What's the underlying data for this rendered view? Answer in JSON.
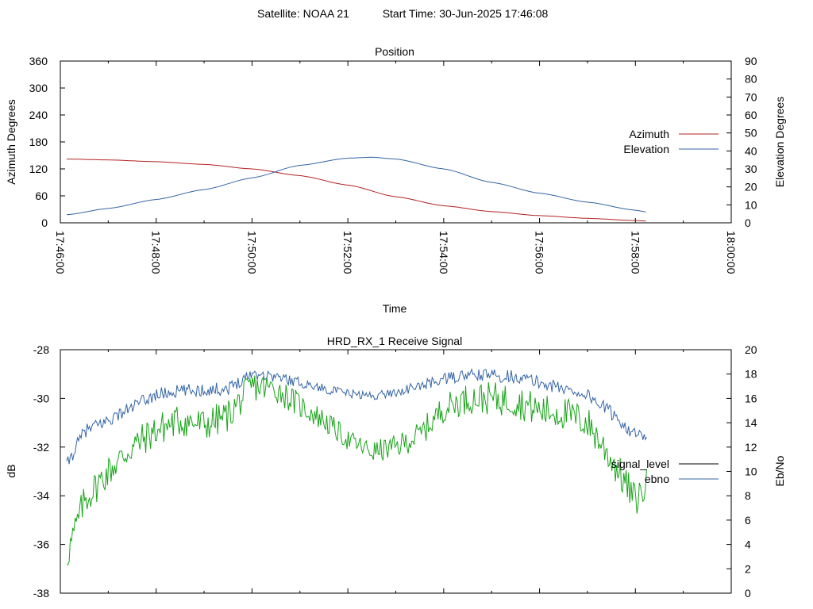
{
  "header": {
    "satellite": "Satellite: NOAA 21",
    "start_time": "Start Time: 30-Jun-2025 17:46:08"
  },
  "colors": {
    "azimuth": "#b22222",
    "elevation": "#3465a4",
    "signal_level": "#000000",
    "ebno": "#3465a4",
    "signal_drawn": "#1aa31a"
  },
  "chart_data": [
    {
      "type": "line",
      "title": "Position",
      "xlabel": "Time",
      "ylabel": "Azimuth Degrees",
      "y2label": "Elevation Degrees",
      "xlim": [
        "17:46:00",
        "18:00:00"
      ],
      "ylim": [
        0,
        360
      ],
      "y2lim": [
        0,
        90
      ],
      "x_ticks": [
        "17:46:00",
        "17:48:00",
        "17:50:00",
        "17:52:00",
        "17:54:00",
        "17:56:00",
        "17:58:00",
        "18:00:00"
      ],
      "y_ticks": [
        "0",
        "60",
        "120",
        "180",
        "240",
        "300",
        "360"
      ],
      "y2_ticks": [
        "0",
        "10",
        "20",
        "30",
        "40",
        "50",
        "60",
        "70",
        "80",
        "90"
      ],
      "legend_position": "right",
      "grid": false,
      "series": [
        {
          "name": "Azimuth",
          "axis": "left",
          "x": [
            "17:46:08",
            "17:47:00",
            "17:48:00",
            "17:49:00",
            "17:50:00",
            "17:51:00",
            "17:52:00",
            "17:53:00",
            "17:54:00",
            "17:55:00",
            "17:56:00",
            "17:57:00",
            "17:58:00",
            "17:58:15"
          ],
          "values": [
            142,
            140,
            136,
            130,
            120,
            105,
            84,
            58,
            38,
            25,
            16,
            10,
            5,
            4
          ]
        },
        {
          "name": "Elevation",
          "axis": "right",
          "x": [
            "17:46:08",
            "17:47:00",
            "17:48:00",
            "17:49:00",
            "17:50:00",
            "17:51:00",
            "17:52:00",
            "17:52:30",
            "17:53:00",
            "17:54:00",
            "17:55:00",
            "17:56:00",
            "17:57:00",
            "17:58:00",
            "17:58:15"
          ],
          "values": [
            4.5,
            8,
            13,
            18.5,
            25,
            32,
            36,
            36.5,
            35.5,
            30,
            22.5,
            16.5,
            11.5,
            7,
            6
          ]
        }
      ]
    },
    {
      "type": "line",
      "title": "HRD_RX_1 Receive Signal",
      "ylabel": "dB",
      "y2label": "Eb/No",
      "xlim": [
        "17:46:00",
        "18:00:00"
      ],
      "ylim": [
        -38,
        -28
      ],
      "y2lim": [
        0,
        20
      ],
      "y_ticks": [
        "-38",
        "-36",
        "-34",
        "-32",
        "-30",
        "-28"
      ],
      "y2_ticks": [
        "0",
        "2",
        "4",
        "6",
        "8",
        "10",
        "12",
        "14",
        "16",
        "18",
        "20"
      ],
      "legend_position": "right",
      "grid": false,
      "series": [
        {
          "name": "signal_level",
          "axis": "left",
          "x": [
            "17:46:08",
            "17:46:30",
            "17:47:00",
            "17:47:30",
            "17:48:00",
            "17:48:30",
            "17:49:00",
            "17:49:30",
            "17:50:00",
            "17:50:30",
            "17:51:00",
            "17:51:30",
            "17:52:00",
            "17:52:30",
            "17:53:00",
            "17:53:30",
            "17:54:00",
            "17:54:30",
            "17:55:00",
            "17:55:30",
            "17:56:00",
            "17:56:30",
            "17:57:00",
            "17:57:30",
            "17:58:00",
            "17:58:15"
          ],
          "values": [
            -36.5,
            -34.2,
            -33.0,
            -32.0,
            -31.3,
            -30.9,
            -31.1,
            -30.7,
            -29.5,
            -29.6,
            -30.3,
            -30.9,
            -31.7,
            -32.2,
            -32.0,
            -31.5,
            -30.4,
            -30.0,
            -30.0,
            -30.1,
            -30.5,
            -30.6,
            -31.0,
            -32.5,
            -34.2,
            -33.5
          ]
        },
        {
          "name": "ebno",
          "axis": "right",
          "x": [
            "17:46:08",
            "17:46:30",
            "17:47:00",
            "17:47:30",
            "17:48:00",
            "17:48:30",
            "17:49:00",
            "17:49:30",
            "17:50:00",
            "17:50:30",
            "17:51:00",
            "17:51:30",
            "17:52:00",
            "17:52:30",
            "17:53:00",
            "17:53:30",
            "17:54:00",
            "17:54:30",
            "17:55:00",
            "17:55:30",
            "17:56:00",
            "17:56:30",
            "17:57:00",
            "17:57:30",
            "17:58:00",
            "17:58:15"
          ],
          "values": [
            10.5,
            13.3,
            14.2,
            15.3,
            16.3,
            16.6,
            16.7,
            16.8,
            18.1,
            17.8,
            17.3,
            16.8,
            16.4,
            16.2,
            16.5,
            17.0,
            17.6,
            17.9,
            17.9,
            17.8,
            17.3,
            16.8,
            16.3,
            14.8,
            13.0,
            12.6
          ]
        }
      ]
    }
  ]
}
